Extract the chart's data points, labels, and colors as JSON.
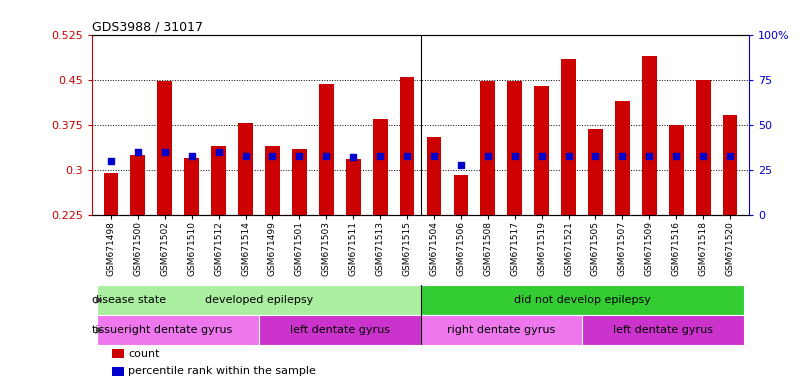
{
  "title": "GDS3988 / 31017",
  "samples": [
    "GSM671498",
    "GSM671500",
    "GSM671502",
    "GSM671510",
    "GSM671512",
    "GSM671514",
    "GSM671499",
    "GSM671501",
    "GSM671503",
    "GSM671511",
    "GSM671513",
    "GSM671515",
    "GSM671504",
    "GSM671506",
    "GSM671508",
    "GSM671517",
    "GSM671519",
    "GSM671521",
    "GSM671505",
    "GSM671507",
    "GSM671509",
    "GSM671516",
    "GSM671518",
    "GSM671520"
  ],
  "counts": [
    0.295,
    0.325,
    0.448,
    0.32,
    0.34,
    0.378,
    0.34,
    0.335,
    0.443,
    0.318,
    0.385,
    0.455,
    0.355,
    0.292,
    0.448,
    0.448,
    0.44,
    0.485,
    0.368,
    0.415,
    0.49,
    0.375,
    0.45,
    0.392
  ],
  "percentile_ranks": [
    30,
    35,
    35,
    33,
    35,
    33,
    33,
    33,
    33,
    32,
    33,
    33,
    33,
    28,
    33,
    33,
    33,
    33,
    33,
    33,
    33,
    33,
    33,
    33
  ],
  "ylim_left": [
    0.225,
    0.525
  ],
  "ylim_right": [
    0,
    100
  ],
  "yticks_left": [
    0.225,
    0.3,
    0.375,
    0.45,
    0.525
  ],
  "yticks_right": [
    0,
    25,
    50,
    75,
    100
  ],
  "bar_color": "#cc0000",
  "dot_color": "#0000cc",
  "dot_size": 14,
  "disease_state_groups": [
    {
      "label": "developed epilepsy",
      "start": 0,
      "end": 12,
      "color": "#aaeea0"
    },
    {
      "label": "did not develop epilepsy",
      "start": 12,
      "end": 24,
      "color": "#33cc33"
    }
  ],
  "tissue_groups": [
    {
      "label": "right dentate gyrus",
      "start": 0,
      "end": 6,
      "color": "#ee77ee"
    },
    {
      "label": "left dentate gyrus",
      "start": 6,
      "end": 12,
      "color": "#cc33cc"
    },
    {
      "label": "right dentate gyrus",
      "start": 12,
      "end": 18,
      "color": "#ee77ee"
    },
    {
      "label": "left dentate gyrus",
      "start": 18,
      "end": 24,
      "color": "#cc33cc"
    }
  ],
  "bar_width": 0.55,
  "background_color": "#ffffff",
  "axis_color_left": "#cc0000",
  "axis_color_right": "#0000cc",
  "tick_fontsize": 6.5,
  "annot_fontsize": 8.0,
  "row_label_fontsize": 8.0,
  "legend_fontsize": 8.0
}
